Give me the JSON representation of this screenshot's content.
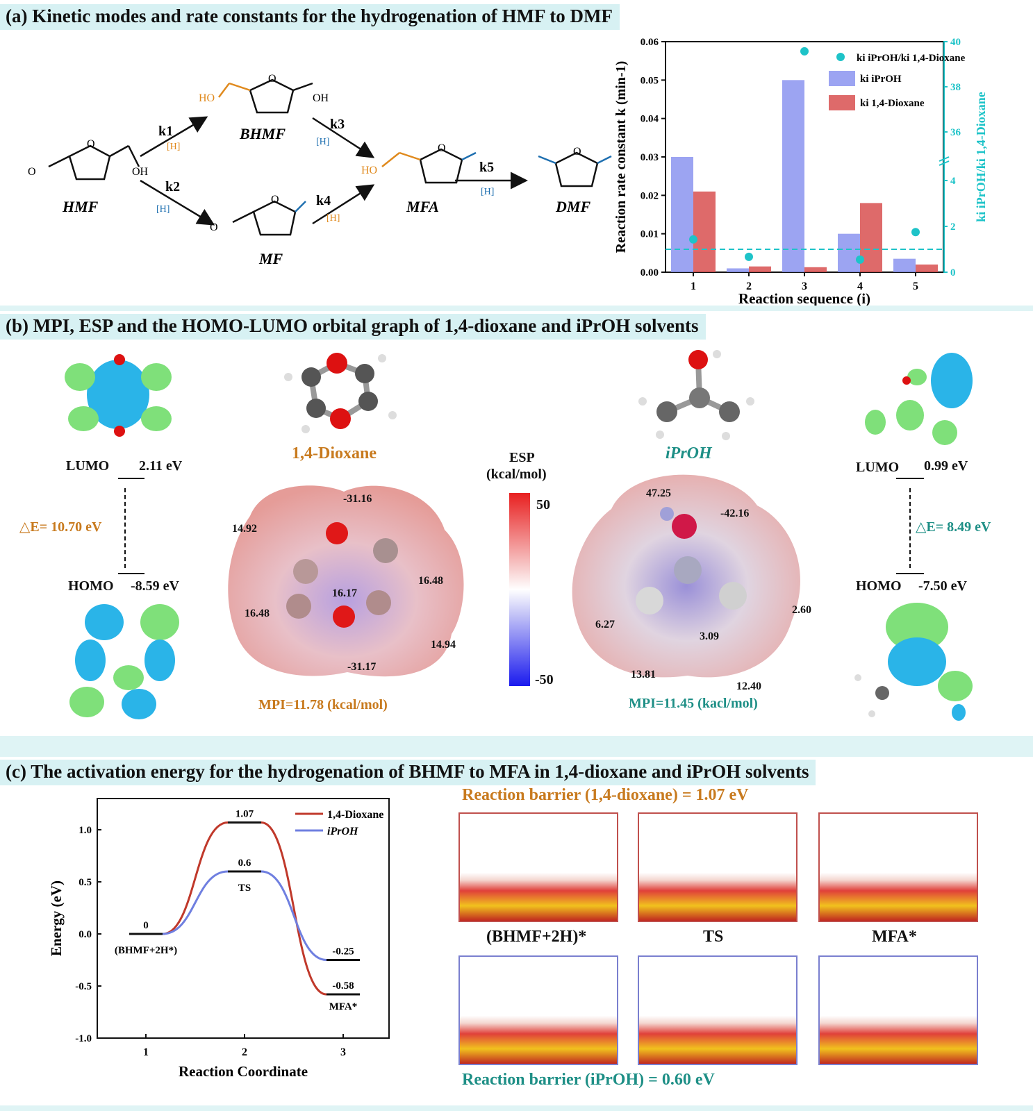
{
  "panel_a": {
    "title": "(a) Kinetic modes and rate constants for the hydrogenation of HMF to DMF",
    "molecules": [
      "HMF",
      "BHMF",
      "MF",
      "MFA",
      "DMF"
    ],
    "steps": [
      "k1",
      "k2",
      "k3",
      "k4",
      "k5"
    ],
    "h_tag": "[H]",
    "atoms": {
      "ho": "HO",
      "oh": "OH",
      "o": "O"
    }
  },
  "panel_b": {
    "title": "(b) MPI, ESP and the HOMO-LUMO orbital graph of 1,4-dioxane and iPrOH solvents",
    "dioxane": {
      "name": "1,4-Dioxane",
      "lumo_label": "LUMO",
      "lumo_value": "2.11 eV",
      "homo_label": "HOMO",
      "homo_value": "-8.59 eV",
      "gap": "△E=  10.70 eV",
      "mpi": "MPI=11.78 (kcal/mol)",
      "esp_points": [
        "-31.16",
        "14.92",
        "16.48",
        "16.48",
        "16.17",
        "14.94",
        "-31.17"
      ]
    },
    "iproh": {
      "name": "iPrOH",
      "lumo_label": "LUMO",
      "lumo_value": "0.99 eV",
      "homo_label": "HOMO",
      "homo_value": "-7.50 eV",
      "gap": "△E=  8.49 eV",
      "mpi": "MPI=11.45 (kacl/mol)",
      "esp_points": [
        "47.25",
        "-42.16",
        "2.60",
        "6.27",
        "3.09",
        "13.81",
        "12.40"
      ]
    },
    "esp_scale": {
      "title_line1": "ESP",
      "title_line2": "(kcal/mol)",
      "max": "50",
      "min": "-50"
    }
  },
  "panel_c": {
    "title": "(c) The activation energy for the hydrogenation of BHMF to MFA in 1,4-dioxane and iPrOH solvents",
    "barrier_dioxane": "Reaction barrier (1,4-dioxane) = 1.07 eV",
    "barrier_iproh": "Reaction barrier (iPrOH) = 0.60 eV",
    "structure_labels": [
      "(BHMF+2H)*",
      "TS",
      "MFA*"
    ],
    "colors": {
      "dioxane": "#c0392b",
      "iproh": "#6f7fe0"
    }
  },
  "chart_data": [
    {
      "type": "bar",
      "categories": [
        "1",
        "2",
        "3",
        "4",
        "5"
      ],
      "xlabel": "Reaction sequence (i)",
      "ylabel": "Reaction rate constant k (min-1)",
      "y2label": "ki iPrOH/ki 1,4-Dioxane",
      "ylim": [
        0,
        0.06
      ],
      "yticks": [
        "0.00",
        "0.01",
        "0.02",
        "0.03",
        "0.04",
        "0.05",
        "0.06"
      ],
      "y2ticks": [
        "0",
        "2",
        "4",
        "36",
        "38",
        "40"
      ],
      "series": [
        {
          "name": "ki iPrOH",
          "values": [
            0.03,
            0.001,
            0.05,
            0.01,
            0.0035
          ],
          "color": "#8b94f0"
        },
        {
          "name": "ki 1,4-Dioxane",
          "values": [
            0.021,
            0.0015,
            0.0013,
            0.018,
            0.002
          ],
          "color": "#d85050"
        },
        {
          "name": "ki iPrOH/ki 1,4-Dioxane",
          "values": [
            1.43,
            0.67,
            38.3,
            0.55,
            1.75
          ],
          "color": "#1ec3c8"
        }
      ],
      "reference_line": 1,
      "legend": "top-right"
    },
    {
      "type": "line",
      "xlabel": "Reaction Coordinate",
      "ylabel": "Energy (eV)",
      "x": [
        1,
        2,
        3
      ],
      "xticks": [
        "1",
        "2",
        "3"
      ],
      "ylim": [
        -1.0,
        1.3
      ],
      "yticks": [
        "-1.0",
        "-0.5",
        "0.0",
        "0.5",
        "1.0"
      ],
      "series": [
        {
          "name": "1,4-Dioxane",
          "values": [
            0,
            1.07,
            -0.58
          ],
          "color": "#c0392b"
        },
        {
          "name": "iPrOH",
          "values": [
            0,
            0.6,
            -0.25
          ],
          "color": "#6f7fe0"
        }
      ],
      "point_labels": {
        "start_value": "0",
        "start_name": "(BHMF+2H*)",
        "ts_dioxane": "1.07",
        "ts_iproh": "0.6",
        "ts_name": "TS",
        "end_iproh": "-0.25",
        "end_dioxane": "-0.58",
        "end_name": "MFA*"
      },
      "legend": "top-right"
    }
  ]
}
